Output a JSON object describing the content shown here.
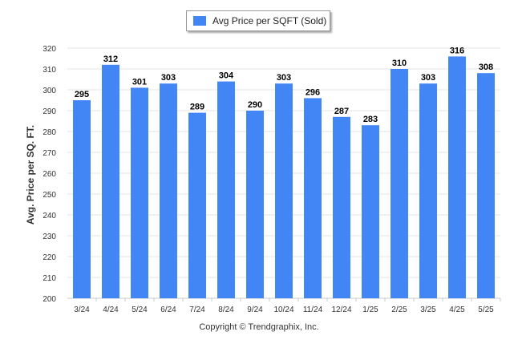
{
  "legend": {
    "label": "Avg Price per SQFT (Sold)"
  },
  "footer": {
    "copyright": "Copyright © Trendgraphix, Inc."
  },
  "colors": {
    "bar": "#4285f4",
    "grid": "#e6e6e6",
    "axis": "#c8c8c8",
    "tick_text": "#333333",
    "value_text": "#000000"
  },
  "chart_data": {
    "type": "bar",
    "categories": [
      "3/24",
      "4/24",
      "5/24",
      "6/24",
      "7/24",
      "8/24",
      "9/24",
      "10/24",
      "11/24",
      "12/24",
      "1/25",
      "2/25",
      "3/25",
      "4/25",
      "5/25"
    ],
    "series": [
      {
        "name": "Avg Price per SQFT (Sold)",
        "values": [
          295,
          312,
          301,
          303,
          289,
          304,
          290,
          303,
          296,
          287,
          283,
          310,
          303,
          316,
          308
        ]
      }
    ],
    "ylabel": "Avg. Price per SQ. FT.",
    "xlabel": "",
    "ylim": [
      200,
      320
    ],
    "yticks": [
      200,
      210,
      220,
      230,
      240,
      250,
      260,
      270,
      280,
      290,
      300,
      310,
      320
    ],
    "grid": true,
    "legend_position": "top-center",
    "data_labels": true
  }
}
